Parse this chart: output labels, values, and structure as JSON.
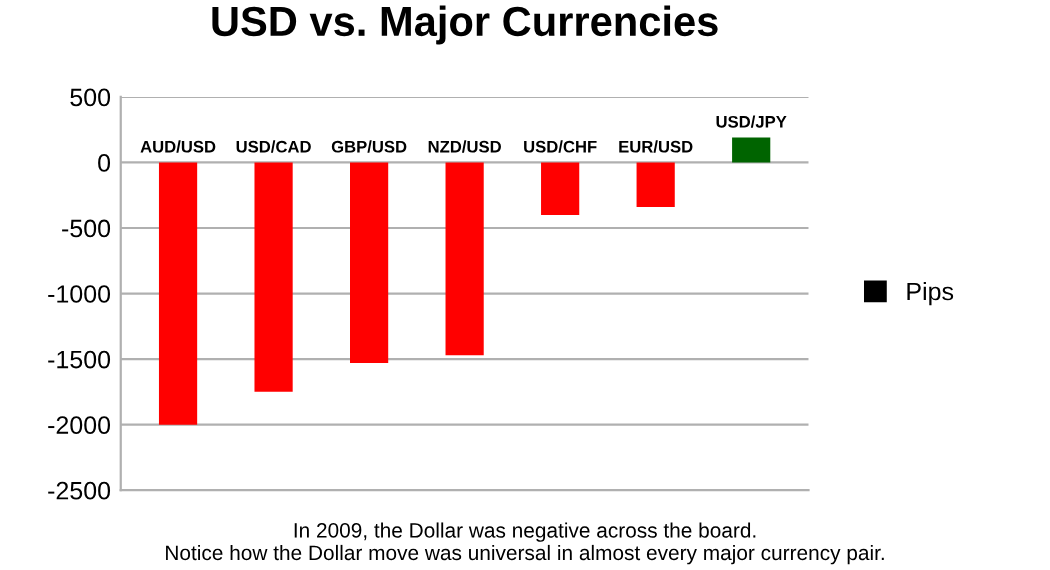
{
  "chart_data": {
    "type": "bar",
    "title": "USD vs. Major Currencies",
    "categories": [
      "AUD/USD",
      "USD/CAD",
      "GBP/USD",
      "NZD/USD",
      "USD/CHF",
      "EUR/USD",
      "USD/JPY"
    ],
    "series": [
      {
        "name": "Pips",
        "color": "#000000",
        "colors": [
          "#ff0000",
          "#ff0000",
          "#ff0000",
          "#ff0000",
          "#ff0000",
          "#ff0000",
          "#006400"
        ],
        "values": [
          -2000,
          -1750,
          -1530,
          -1470,
          -400,
          -340,
          190
        ]
      }
    ],
    "ylim": [
      -2500,
      500
    ],
    "yticks": [
      -2500,
      -2000,
      -1500,
      -1000,
      -500,
      0,
      500
    ],
    "grid": "y",
    "legend": "right",
    "annotations": [
      "In 2009, the Dollar was negative across the board.\nNotice how the Dollar move was universal in almost every major currency pair."
    ]
  }
}
